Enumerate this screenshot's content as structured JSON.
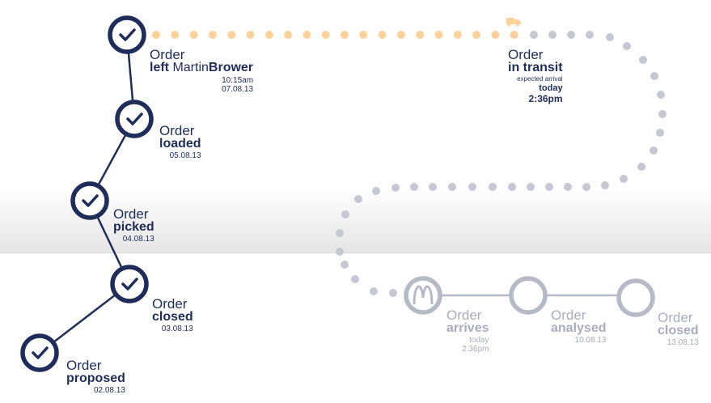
{
  "completed_steps": [
    {
      "title": "Order",
      "status_prefix": "left ",
      "status_name": "Martin",
      "status_name_bold": "Brower",
      "time": "10:15am",
      "date": "07.08.13"
    },
    {
      "title": "Order",
      "status": "loaded",
      "date": "05.08.13"
    },
    {
      "title": "Order",
      "status": "picked",
      "date": "04.08.13"
    },
    {
      "title": "Order",
      "status": "closed",
      "date": "03.08.13"
    },
    {
      "title": "Order",
      "status": "proposed",
      "date": "02.08.13"
    }
  ],
  "transit": {
    "title": "Order",
    "status": "in transit",
    "caption": "expected arrival",
    "day": "today",
    "time": "2:36pm"
  },
  "future_steps": [
    {
      "title": "Order",
      "status": "arrives",
      "day": "today",
      "time": "2:36pm"
    },
    {
      "title": "Order",
      "status": "analysed",
      "date": "10.08.13"
    },
    {
      "title": "Order",
      "status": "closed",
      "date": "13.08.13"
    }
  ],
  "icons": {
    "check": "check-icon",
    "truck": "truck-icon",
    "logo": "mcdonalds-logo-icon"
  },
  "colors": {
    "navy": "#1f2d5a",
    "gray": "#a9aebf",
    "orange": "#fcd29a"
  }
}
